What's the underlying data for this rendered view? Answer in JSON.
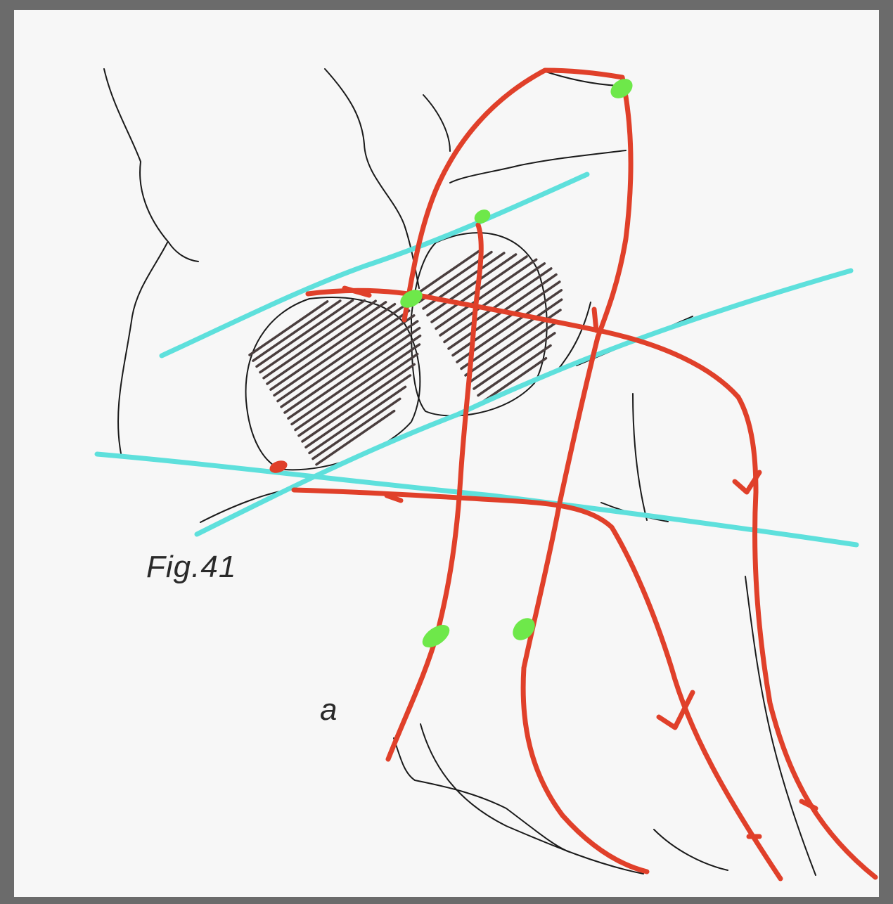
{
  "figure": {
    "label": "Fig.41",
    "sublabel": "a"
  },
  "colors": {
    "paper": "#f7f7f7",
    "pencil": "#1a1a1a",
    "hatch": "#4a3e3e",
    "red_line": "#e0402a",
    "cyan_line": "#5ee0dc",
    "green_mark": "#6ee84a"
  }
}
